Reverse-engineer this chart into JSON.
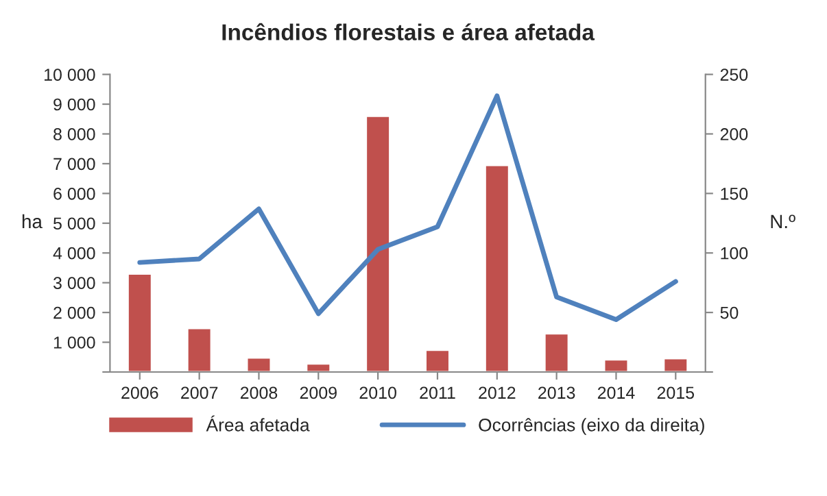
{
  "chart_data": {
    "type": "bar",
    "title": "Incêndios florestais e área afetada",
    "ylabel": "ha",
    "y2label": "N.º",
    "categories": [
      "2006",
      "2007",
      "2008",
      "2009",
      "2010",
      "2011",
      "2012",
      "2013",
      "2014",
      "2015"
    ],
    "series": [
      {
        "name": "Área afetada",
        "color": "#c0504d",
        "values": [
          3300,
          1470,
          480,
          280,
          8600,
          740,
          6950,
          1290,
          420,
          460
        ]
      },
      {
        "name": "Ocorrências (eixo da direita)",
        "type": "line",
        "axis": "y2",
        "color": "#4f81bd",
        "values": [
          92,
          95,
          137,
          49,
          103,
          122,
          232,
          63,
          44,
          76
        ]
      }
    ],
    "ylim": [
      0,
      10000
    ],
    "yticks": [
      {
        "value": 0,
        "label": null
      },
      {
        "value": 1000,
        "label": "1 000"
      },
      {
        "value": 2000,
        "label": "2 000"
      },
      {
        "value": 3000,
        "label": "3 000"
      },
      {
        "value": 4000,
        "label": "4 000"
      },
      {
        "value": 5000,
        "label": "5 000"
      },
      {
        "value": 6000,
        "label": "6 000"
      },
      {
        "value": 7000,
        "label": "7 000"
      },
      {
        "value": 8000,
        "label": "8 000"
      },
      {
        "value": 9000,
        "label": "9 000"
      },
      {
        "value": 10000,
        "label": "10 000"
      }
    ],
    "y2lim": [
      0,
      250
    ],
    "y2ticks": [
      {
        "value": 0,
        "label": null
      },
      50,
      100,
      150,
      200,
      250
    ],
    "grid": false,
    "legend": "bottom",
    "marker": "none",
    "line_style": "solid"
  }
}
